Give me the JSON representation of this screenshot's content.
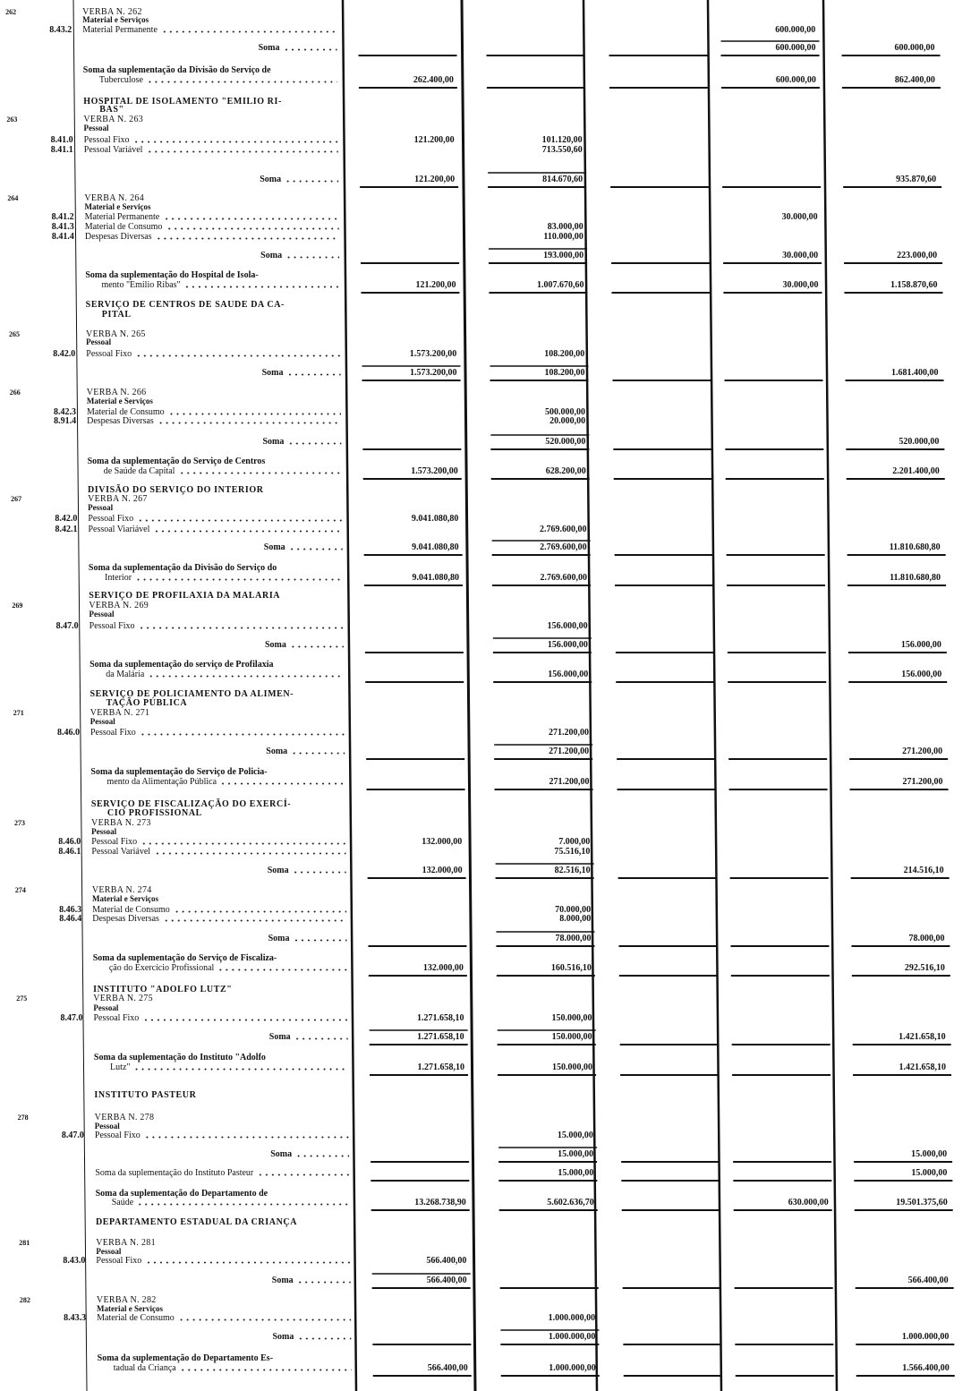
{
  "document": {
    "columns": [
      "col_a",
      "col_b",
      "col_c",
      "col_d",
      "col_e"
    ],
    "rows": [
      {
        "kind": "verba",
        "num": "262",
        "desc": "VERBA N. 262"
      },
      {
        "kind": "sub",
        "desc": "Material e Serviços"
      },
      {
        "kind": "item",
        "code": "8.43.2",
        "desc": "Material Permanente",
        "col_d": "600.000,00"
      },
      {
        "kind": "soma",
        "desc": "Soma",
        "col_d": "600.000,00",
        "col_e": "600.000,00"
      },
      {
        "kind": "text",
        "desc": "Soma da suplementação da Divisão do Serviço de"
      },
      {
        "kind": "cont",
        "desc": "Tuberculose",
        "col_a": "262.400,00",
        "col_d": "600.000,00",
        "col_e": "862.400,00",
        "total": true
      },
      {
        "kind": "head",
        "desc": "HOSPITAL DE ISOLAMENTO \"EMILIO RI-"
      },
      {
        "kind": "headcont",
        "desc": "BAS\""
      },
      {
        "kind": "verba",
        "num": "263",
        "desc": "VERBA N. 263"
      },
      {
        "kind": "sub",
        "desc": "Pessoal"
      },
      {
        "kind": "item",
        "code": "8.41.0",
        "desc": "Pessoal Fixo",
        "col_a": "121.200,00",
        "col_b": "101.120,00"
      },
      {
        "kind": "item",
        "code": "8.41.1",
        "desc": "Pessoal Variável",
        "col_b": "713.550,60"
      },
      {
        "kind": "soma",
        "desc": "Soma",
        "col_a": "121.200,00",
        "col_b": "814.670,60",
        "col_e": "935.870,60"
      },
      {
        "kind": "verba",
        "num": "264",
        "desc": "VERBA N. 264"
      },
      {
        "kind": "sub",
        "desc": "Material e Serviços"
      },
      {
        "kind": "item",
        "code": "8.41.2",
        "desc": "Material Permanente",
        "col_d": "30.000,00"
      },
      {
        "kind": "item",
        "code": "8.41.3",
        "desc": "Material de Consumo",
        "col_b": "83.000,00"
      },
      {
        "kind": "item",
        "code": "8.41.4",
        "desc": "Despesas Diversas",
        "col_b": "110.000,00"
      },
      {
        "kind": "soma",
        "desc": "Soma",
        "col_b": "193.000,00",
        "col_d": "30.000,00",
        "col_e": "223.000,00"
      },
      {
        "kind": "text",
        "desc": "Soma da suplementação do Hospital de Isola-"
      },
      {
        "kind": "cont",
        "desc": "mento \"Emilio Ribas\"",
        "col_a": "121.200,00",
        "col_b": "1.007.670,60",
        "col_d": "30.000,00",
        "col_e": "1.158.870,60",
        "total": true
      },
      {
        "kind": "head",
        "desc": "SERVIÇO DE CENTROS DE SAUDE DA CA-"
      },
      {
        "kind": "headcont",
        "desc": "PITAL"
      },
      {
        "kind": "verba",
        "num": "265",
        "desc": "VERBA N. 265"
      },
      {
        "kind": "sub",
        "desc": "Pessoal"
      },
      {
        "kind": "item",
        "code": "8.42.0",
        "desc": "Pessoal Fixo",
        "col_a": "1.573.200,00",
        "col_b": "108.200,00"
      },
      {
        "kind": "soma",
        "desc": "Soma",
        "col_a": "1.573.200,00",
        "col_b": "108.200,00",
        "col_e": "1.681.400,00"
      },
      {
        "kind": "verba",
        "num": "266",
        "desc": "VERBA N. 266"
      },
      {
        "kind": "sub",
        "desc": "Material e Serviços"
      },
      {
        "kind": "item",
        "code": "8.42.3",
        "desc": "Material de Consumo",
        "col_b": "500.000,00"
      },
      {
        "kind": "item",
        "code": "8.91.4",
        "desc": "Despesas Diversas",
        "col_b": "20.000,00"
      },
      {
        "kind": "soma",
        "desc": "Soma",
        "col_b": "520.000,00",
        "col_e": "520.000,00"
      },
      {
        "kind": "text",
        "desc": "Soma da suplementação do Serviço de Centros"
      },
      {
        "kind": "cont",
        "desc": "de Saúde da Capital",
        "col_a": "1.573.200,00",
        "col_b": "628.200,00",
        "col_e": "2.201.400,00",
        "total": true
      },
      {
        "kind": "head",
        "desc": "DIVISÃO DO SERVIÇO DO INTERIOR"
      },
      {
        "kind": "verba",
        "num": "267",
        "desc": "VERBA N. 267"
      },
      {
        "kind": "sub",
        "desc": "Pessoal"
      },
      {
        "kind": "item",
        "code": "8.42.0",
        "desc": "Pessoal Fixo",
        "col_a": "9.041.080,80"
      },
      {
        "kind": "item",
        "code": "8.42.1",
        "desc": "Pessoal Viariável",
        "col_b": "2.769.600,00"
      },
      {
        "kind": "soma",
        "desc": "Soma",
        "col_a": "9.041.080,80",
        "col_b": "2.769.600,00",
        "col_e": "11.810.680,80"
      },
      {
        "kind": "text",
        "desc": "Soma da suplementação da Divisão do Serviço do"
      },
      {
        "kind": "cont",
        "desc": "Interior",
        "col_a": "9.041.080,80",
        "col_b": "2.769.600,00",
        "col_e": "11.810.680,80",
        "total": true
      },
      {
        "kind": "head",
        "desc": "SERVIÇO DE PROFILAXIA DA MALARIA"
      },
      {
        "kind": "verba",
        "num": "269",
        "desc": "VERBA N. 269"
      },
      {
        "kind": "sub",
        "desc": "Pessoal"
      },
      {
        "kind": "item",
        "code": "8.47.0",
        "desc": "Pessoal Fixo",
        "col_b": "156.000,00"
      },
      {
        "kind": "soma",
        "desc": "Soma",
        "col_b": "156.000,00",
        "col_e": "156.000,00"
      },
      {
        "kind": "text",
        "desc": "Soma da suplementação do serviço de Profilaxia"
      },
      {
        "kind": "cont",
        "desc": "da Malária",
        "col_b": "156.000,00",
        "col_e": "156.000,00",
        "total": true
      },
      {
        "kind": "head",
        "desc": "SERVIÇO DE POLICIAMENTO DA ALIMEN-"
      },
      {
        "kind": "headcont",
        "desc": "TAÇÃO PÚBLICA"
      },
      {
        "kind": "verba",
        "num": "271",
        "desc": "VERBA N. 271"
      },
      {
        "kind": "sub",
        "desc": "Pessoal"
      },
      {
        "kind": "item",
        "code": "8.46.0",
        "desc": "Pessoal Fixo",
        "col_b": "271.200,00"
      },
      {
        "kind": "soma",
        "desc": "Soma",
        "col_b": "271.200,00",
        "col_e": "271.200,00"
      },
      {
        "kind": "text",
        "desc": "Soma da suplementação do Serviço de Policia-"
      },
      {
        "kind": "cont",
        "desc": "mento da Alimentação Pública",
        "col_b": "271.200,00",
        "col_e": "271.200,00",
        "total": true
      },
      {
        "kind": "head",
        "desc": "SERVIÇO DE FISCALIZAÇÃO DO EXERCÍ-"
      },
      {
        "kind": "headcont",
        "desc": "CIO PROFISSIONAL"
      },
      {
        "kind": "verba",
        "num": "273",
        "desc": "VERBA N. 273"
      },
      {
        "kind": "sub",
        "desc": "Pessoal"
      },
      {
        "kind": "item",
        "code": "8.46.0",
        "desc": "Pessoal Fixo",
        "col_a": "132.000,00",
        "col_b": "7.000,00"
      },
      {
        "kind": "item",
        "code": "8.46.1",
        "desc": "Pessoal Variável",
        "col_b": "75.516,10"
      },
      {
        "kind": "soma",
        "desc": "Soma",
        "col_a": "132.000,00",
        "col_b": "82.516,10",
        "col_e": "214.516,10"
      },
      {
        "kind": "verba",
        "num": "274",
        "desc": "VERBA N. 274"
      },
      {
        "kind": "sub",
        "desc": "Material e Serviços"
      },
      {
        "kind": "item",
        "code": "8.46.3",
        "desc": "Material de Consumo",
        "col_b": "70.000,00"
      },
      {
        "kind": "item",
        "code": "8.46.4",
        "desc": "Despesas Diversas",
        "col_b": "8.000,00"
      },
      {
        "kind": "soma",
        "desc": "Soma",
        "col_b": "78.000,00",
        "col_e": "78.000,00"
      },
      {
        "kind": "text",
        "desc": "Soma da suplementação do Serviço de Fiscaliza-"
      },
      {
        "kind": "cont",
        "desc": "ção do Exercício Profissional",
        "col_a": "132.000,00",
        "col_b": "160.516,10",
        "col_e": "292.516,10",
        "total": true
      },
      {
        "kind": "head",
        "desc": "INSTITUTO \"ADOLFO LUTZ\""
      },
      {
        "kind": "verba",
        "num": "275",
        "desc": "VERBA N. 275"
      },
      {
        "kind": "sub",
        "desc": "Pessoal"
      },
      {
        "kind": "item",
        "code": "8.47.0",
        "desc": "Pessoal Fixo",
        "col_a": "1.271.658,10",
        "col_b": "150.000,00"
      },
      {
        "kind": "soma",
        "desc": "Soma",
        "col_a": "1.271.658,10",
        "col_b": "150.000,00",
        "col_e": "1.421.658,10"
      },
      {
        "kind": "text",
        "desc": "Soma da suplementação do Instituto \"Adolfo"
      },
      {
        "kind": "cont",
        "desc": "Lutz\"",
        "col_a": "1.271.658,10",
        "col_b": "150.000,00",
        "col_e": "1.421.658,10",
        "total": true
      },
      {
        "kind": "head",
        "desc": "INSTITUTO PASTEUR"
      },
      {
        "kind": "verba",
        "num": "278",
        "desc": "VERBA N. 278"
      },
      {
        "kind": "sub",
        "desc": "Pessoal"
      },
      {
        "kind": "item",
        "code": "8.47.0",
        "desc": "Pessoal Fixo",
        "col_b": "15.000,00"
      },
      {
        "kind": "soma",
        "desc": "Soma",
        "col_b": "15.000,00",
        "col_e": "15.000,00"
      },
      {
        "kind": "item",
        "desc": "Soma da suplementação do Instituto Pasteur",
        "col_b": "15.000,00",
        "col_e": "15.000,00",
        "total": true
      },
      {
        "kind": "text",
        "desc": "Soma da suplementação do Departamento de"
      },
      {
        "kind": "cont",
        "desc": "Saúde",
        "col_a": "13.268.738,90",
        "col_b": "5.602.636,70",
        "col_d": "630.000,00",
        "col_e": "19.501.375,60",
        "total": true
      },
      {
        "kind": "head",
        "desc": "DEPARTAMENTO ESTADUAL DA CRIANÇA"
      },
      {
        "kind": "verba",
        "num": "281",
        "desc": "VERBA N. 281"
      },
      {
        "kind": "sub",
        "desc": "Pessoal"
      },
      {
        "kind": "item",
        "code": "8.43.0",
        "desc": "Pessoal Fixo",
        "col_a": "566.400,00"
      },
      {
        "kind": "soma",
        "desc": "Soma",
        "col_a": "566.400,00",
        "col_e": "566.400,00"
      },
      {
        "kind": "verba",
        "num": "282",
        "desc": "VERBA N. 282"
      },
      {
        "kind": "sub",
        "desc": "Material e Serviços"
      },
      {
        "kind": "item",
        "code": "8.43.3",
        "desc": "Material de Consumo",
        "col_b": "1.000.000,00"
      },
      {
        "kind": "soma",
        "desc": "Soma",
        "col_b": "1.000.000,00",
        "col_e": "1.000.000,00"
      },
      {
        "kind": "text",
        "desc": "Soma da suplementação do Departamento Es-"
      },
      {
        "kind": "cont",
        "desc": "tadual da Criança",
        "col_a": "566.400,00",
        "col_b": "1.000.000,00",
        "col_e": "1.566.400,00",
        "total": true
      }
    ]
  }
}
